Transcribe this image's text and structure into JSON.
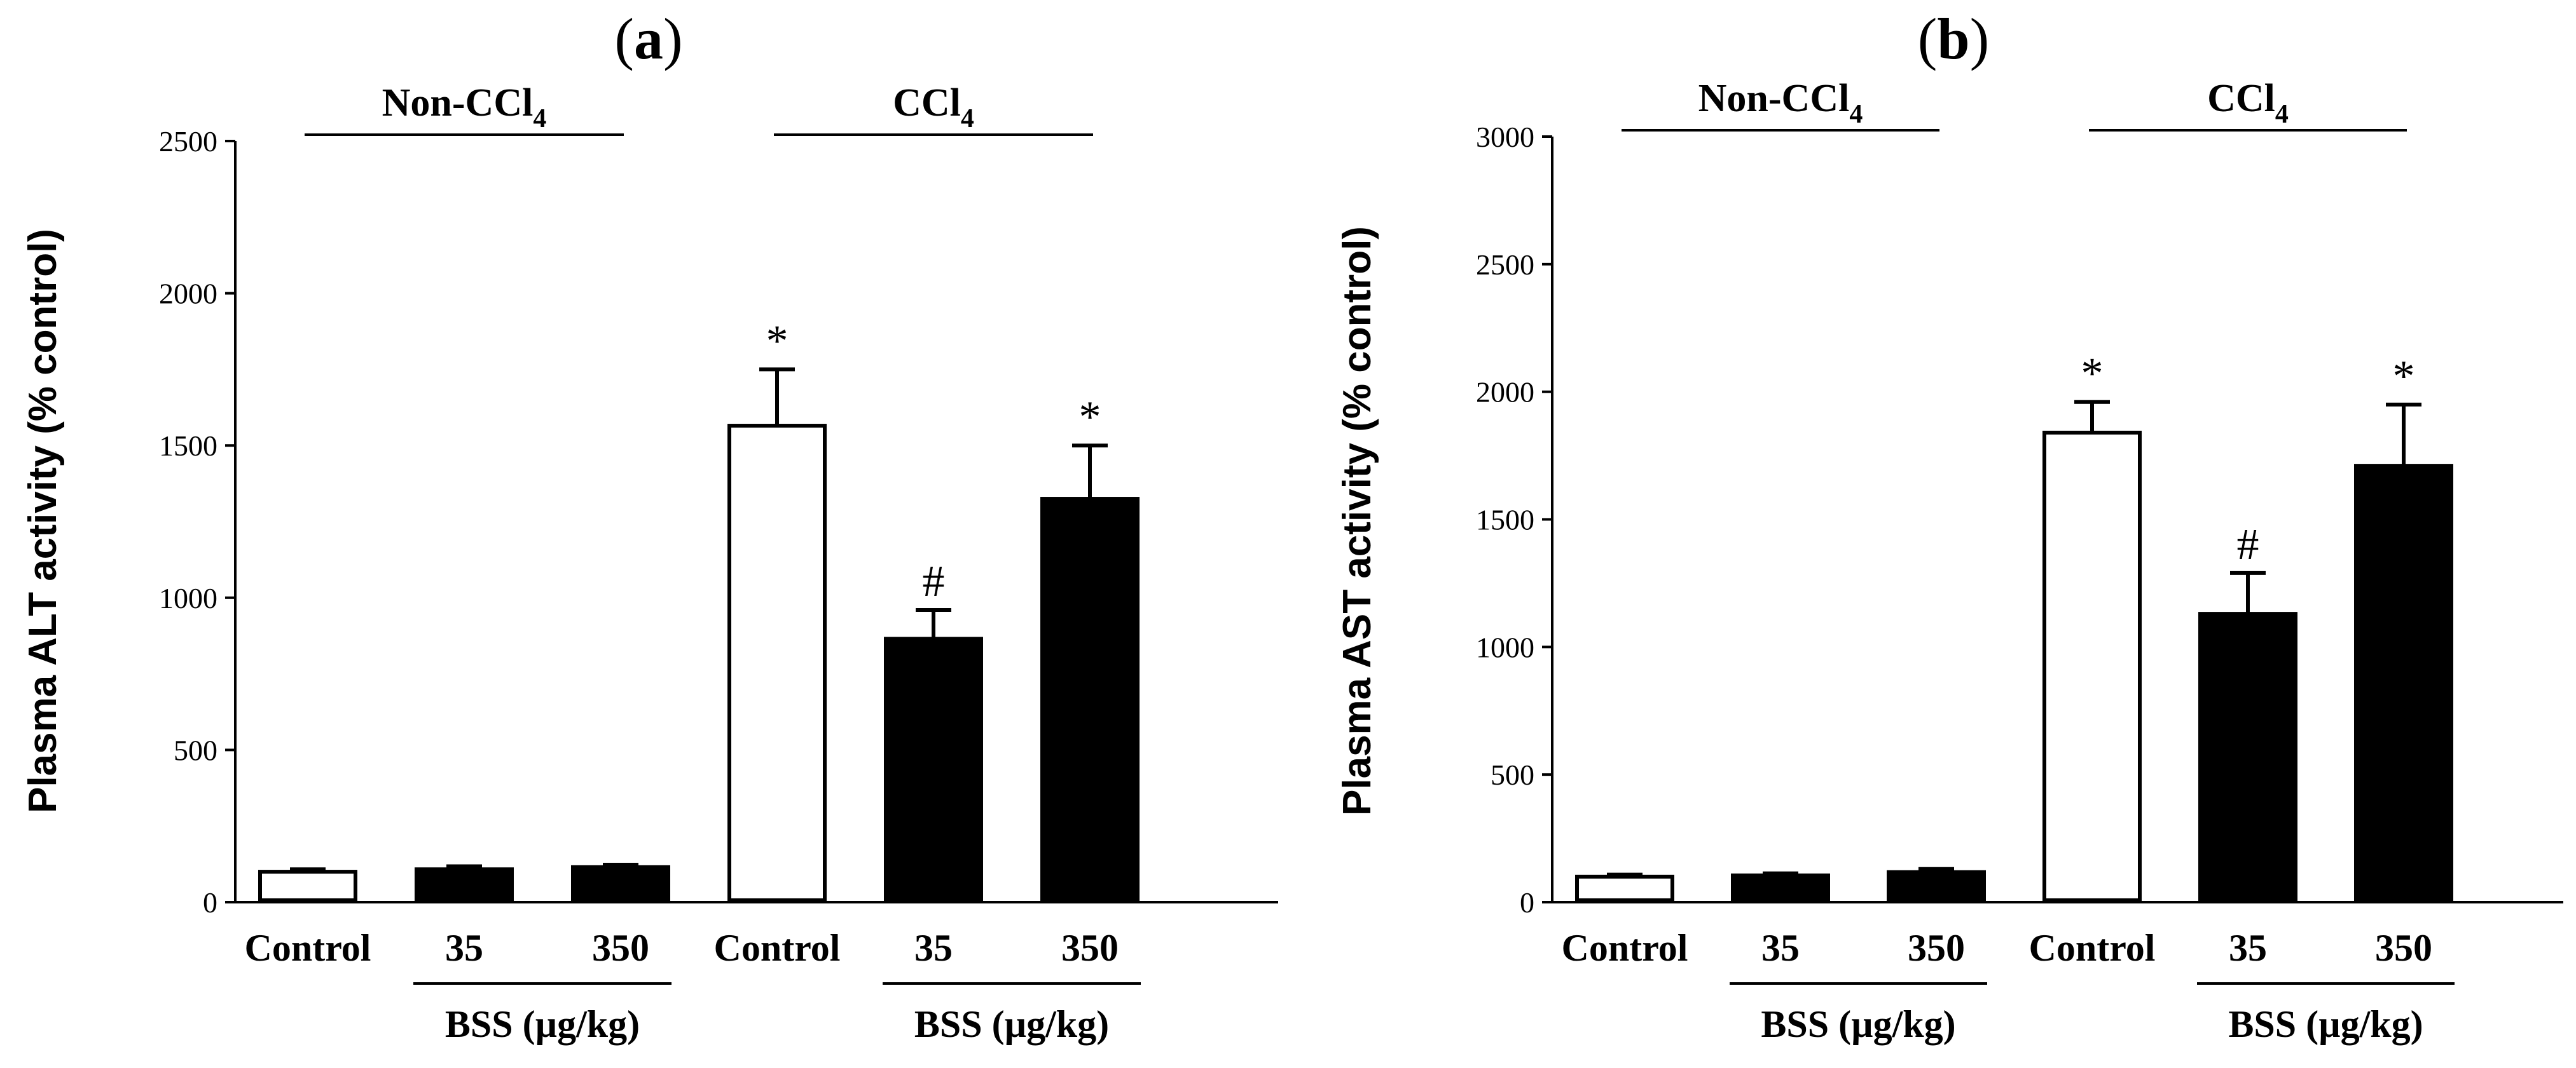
{
  "chart_data": [
    {
      "type": "bar",
      "panel_label": "a",
      "title": "(a)",
      "ylabel": "Plasma ALT activity (% control)",
      "ylim": [
        0,
        2500
      ],
      "yticks": [
        0,
        500,
        1000,
        1500,
        2000,
        2500
      ],
      "ytick_labels": [
        "0",
        "500",
        "1000",
        "1500",
        "2000",
        "2500"
      ],
      "categories": [
        "Control",
        "35",
        "350",
        "Control",
        "35",
        "350"
      ],
      "values": [
        100,
        108,
        115,
        1565,
        865,
        1325
      ],
      "errors": [
        8,
        10,
        8,
        185,
        95,
        175
      ],
      "fills": [
        "#ffffff",
        "#000000",
        "#000000",
        "#ffffff",
        "#000000",
        "#000000"
      ],
      "annotations": [
        "",
        "",
        "",
        "*",
        "#",
        "*"
      ],
      "groups": [
        {
          "label": "Non-CCl",
          "sub": "4",
          "from": 0,
          "to": 2
        },
        {
          "label": "CCl",
          "sub": "4",
          "from": 3,
          "to": 5
        }
      ],
      "sub_groups": [
        {
          "label": "BSS (µg/kg)",
          "from": 1,
          "to": 2
        },
        {
          "label": "BSS (µg/kg)",
          "from": 4,
          "to": 5
        }
      ]
    },
    {
      "type": "bar",
      "panel_label": "b",
      "title": "(b)",
      "ylabel": "Plasma AST activity (% control)",
      "ylim": [
        0,
        3000
      ],
      "yticks": [
        0,
        500,
        1000,
        1500,
        2000,
        2500,
        3000
      ],
      "ytick_labels": [
        "0",
        "500",
        "1000",
        "1500",
        "2000",
        "2500",
        "3000"
      ],
      "categories": [
        "Control",
        "35",
        "350",
        "Control",
        "35",
        "350"
      ],
      "values": [
        100,
        105,
        118,
        1840,
        1130,
        1710
      ],
      "errors": [
        8,
        8,
        12,
        120,
        160,
        240
      ],
      "fills": [
        "#ffffff",
        "#000000",
        "#000000",
        "#ffffff",
        "#000000",
        "#000000"
      ],
      "annotations": [
        "",
        "",
        "",
        "*",
        "#",
        "*"
      ],
      "groups": [
        {
          "label": "Non-CCl",
          "sub": "4",
          "from": 0,
          "to": 2
        },
        {
          "label": "CCl",
          "sub": "4",
          "from": 3,
          "to": 5
        }
      ],
      "sub_groups": [
        {
          "label": "BSS (µg/kg)",
          "from": 1,
          "to": 2
        },
        {
          "label": "BSS (µg/kg)",
          "from": 4,
          "to": 5
        }
      ]
    }
  ]
}
